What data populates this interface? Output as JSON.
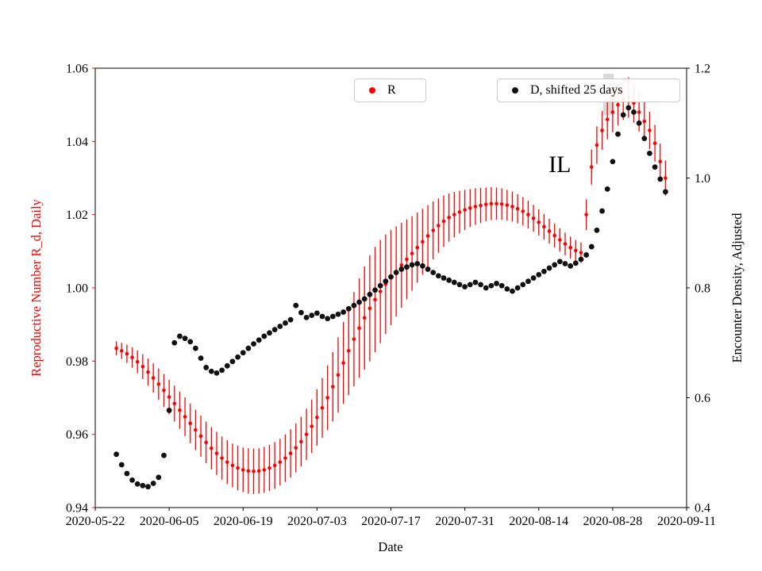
{
  "figure": {
    "xlabel": "Date",
    "ylabel_left": "Reproductive Number R_d, Daily",
    "ylabel_right": "Encounter Density, Adjusted",
    "legend_r": "R",
    "legend_d": "D, shifted 25 days",
    "annotation": "IL",
    "accent_red": "#ff0000",
    "dot_black": "#111111",
    "background": "#ffffff"
  },
  "chart_data": {
    "type": "scatter",
    "title": "",
    "grid": false,
    "x_axis": {
      "label": "Date",
      "start_date": "2020-05-22",
      "span_days": 112,
      "tick_days": [
        0,
        14,
        28,
        42,
        56,
        70,
        84,
        98,
        112
      ],
      "tick_labels": [
        "2020-05-22",
        "2020-06-05",
        "2020-06-19",
        "2020-07-03",
        "2020-07-17",
        "2020-07-31",
        "2020-08-14",
        "2020-08-28",
        "2020-09-11"
      ]
    },
    "left_axis": {
      "label": "Reproductive Number R_d, Daily",
      "min": 0.94,
      "max": 1.06,
      "ticks": [
        0.94,
        0.96,
        0.98,
        1.0,
        1.02,
        1.04,
        1.06
      ],
      "tick_labels": [
        "0.94",
        "0.96",
        "0.98",
        "1.00",
        "1.02",
        "1.04",
        "1.06"
      ],
      "color": "#ff0000"
    },
    "right_axis": {
      "label": "Encounter Density, Adjusted",
      "min": 0.4,
      "max": 1.2,
      "ticks": [
        0.4,
        0.6,
        0.8,
        1.0,
        1.2
      ],
      "tick_labels": [
        "0.4",
        "0.6",
        "0.8",
        "1.0",
        "1.2"
      ],
      "color": "#000000"
    },
    "series": [
      {
        "name": "R",
        "axis": "left",
        "marker": "circle",
        "marker_radius": 2.3,
        "color": "#ff0000",
        "day_start": 4,
        "values": [
          0.9835,
          0.9828,
          0.982,
          0.981,
          0.9798,
          0.9785,
          0.977,
          0.9754,
          0.9737,
          0.972,
          0.9702,
          0.9684,
          0.9666,
          0.9648,
          0.963,
          0.9612,
          0.9595,
          0.9578,
          0.9562,
          0.9548,
          0.9535,
          0.9524,
          0.9515,
          0.9508,
          0.9503,
          0.95,
          0.9499,
          0.95,
          0.9503,
          0.9508,
          0.9515,
          0.9524,
          0.9535,
          0.9548,
          0.9563,
          0.958,
          0.96,
          0.9622,
          0.9646,
          0.9672,
          0.97,
          0.973,
          0.9762,
          0.9795,
          0.9828,
          0.986,
          0.989,
          0.9918,
          0.9944,
          0.9968,
          0.999,
          1.001,
          1.0028,
          1.0045,
          1.0062,
          1.0078,
          1.0094,
          1.011,
          1.0126,
          1.0142,
          1.0157,
          1.017,
          1.0182,
          1.0192,
          1.02,
          1.0207,
          1.0213,
          1.0218,
          1.0222,
          1.0225,
          1.0228,
          1.023,
          1.023,
          1.0229,
          1.0226,
          1.0222,
          1.0216,
          1.0209,
          1.02,
          1.019,
          1.0179,
          1.0167,
          1.0155,
          1.0143,
          1.0131,
          1.012,
          1.011,
          1.0102,
          1.0096,
          1.02,
          1.033,
          1.039,
          1.043,
          1.046,
          1.048,
          1.05,
          1.0515,
          1.052,
          1.0505,
          1.048,
          1.0455,
          1.043,
          1.0395,
          1.0345,
          1.03
        ],
        "errors": [
          0.0019,
          0.0022,
          0.0025,
          0.0028,
          0.0031,
          0.0034,
          0.0037,
          0.004,
          0.0043,
          0.0045,
          0.0047,
          0.0049,
          0.0051,
          0.0053,
          0.0054,
          0.0055,
          0.0056,
          0.0057,
          0.0058,
          0.0059,
          0.0059,
          0.006,
          0.006,
          0.0061,
          0.0061,
          0.0062,
          0.0062,
          0.0062,
          0.0063,
          0.0063,
          0.0064,
          0.0064,
          0.0065,
          0.0066,
          0.0067,
          0.0068,
          0.007,
          0.0073,
          0.0077,
          0.0082,
          0.0088,
          0.0095,
          0.0103,
          0.0112,
          0.0121,
          0.0129,
          0.0136,
          0.0141,
          0.0145,
          0.0144,
          0.0141,
          0.0136,
          0.013,
          0.0123,
          0.0116,
          0.0109,
          0.0102,
          0.0096,
          0.009,
          0.0084,
          0.0079,
          0.0074,
          0.007,
          0.0066,
          0.0062,
          0.0058,
          0.0055,
          0.0052,
          0.005,
          0.0048,
          0.0046,
          0.0045,
          0.0044,
          0.0043,
          0.0042,
          0.0041,
          0.004,
          0.0039,
          0.0038,
          0.0037,
          0.0036,
          0.0035,
          0.0034,
          0.0033,
          0.0032,
          0.0031,
          0.003,
          0.0029,
          0.0028,
          0.0042,
          0.0048,
          0.0051,
          0.0053,
          0.0054,
          0.0055,
          0.0056,
          0.0056,
          0.0055,
          0.0054,
          0.0053,
          0.0052,
          0.0051,
          0.005,
          0.0049,
          0.0048
        ]
      },
      {
        "name": "D, shifted 25 days",
        "axis": "right",
        "marker": "circle",
        "marker_radius": 3.4,
        "color": "#111111",
        "day_start": 4,
        "values": [
          0.497,
          0.478,
          0.462,
          0.45,
          0.443,
          0.44,
          0.438,
          0.444,
          0.455,
          0.495,
          0.577,
          0.7,
          0.712,
          0.708,
          0.702,
          0.69,
          0.672,
          0.655,
          0.648,
          0.645,
          0.65,
          0.658,
          0.666,
          0.674,
          0.682,
          0.69,
          0.698,
          0.705,
          0.712,
          0.718,
          0.724,
          0.73,
          0.736,
          0.742,
          0.768,
          0.755,
          0.746,
          0.75,
          0.754,
          0.748,
          0.744,
          0.748,
          0.752,
          0.756,
          0.762,
          0.768,
          0.774,
          0.78,
          0.788,
          0.796,
          0.804,
          0.812,
          0.82,
          0.828,
          0.834,
          0.838,
          0.842,
          0.844,
          0.84,
          0.834,
          0.828,
          0.822,
          0.818,
          0.814,
          0.81,
          0.806,
          0.802,
          0.806,
          0.81,
          0.806,
          0.8,
          0.804,
          0.808,
          0.804,
          0.798,
          0.794,
          0.8,
          0.806,
          0.812,
          0.818,
          0.824,
          0.83,
          0.836,
          0.842,
          0.848,
          0.844,
          0.84,
          0.845,
          0.852,
          0.86,
          0.875,
          0.905,
          0.94,
          0.98,
          1.03,
          1.08,
          1.115,
          1.128,
          1.12,
          1.1,
          1.072,
          1.045,
          1.02,
          0.998,
          0.975
        ]
      }
    ],
    "annotations": [
      {
        "text": "IL",
        "day": 88,
        "value_left": 1.0335
      }
    ],
    "gray_patch": {
      "axis": "right",
      "day_start": 96.2,
      "day_end": 98.2,
      "value_low": 1.115,
      "value_high": 1.19,
      "color": "#d9d9d9"
    },
    "legend": [
      {
        "label": "R",
        "marker_color": "#ff0000",
        "position": "upper center-left"
      },
      {
        "label": "D, shifted 25 days",
        "marker_color": "#111111",
        "position": "upper right"
      }
    ]
  }
}
